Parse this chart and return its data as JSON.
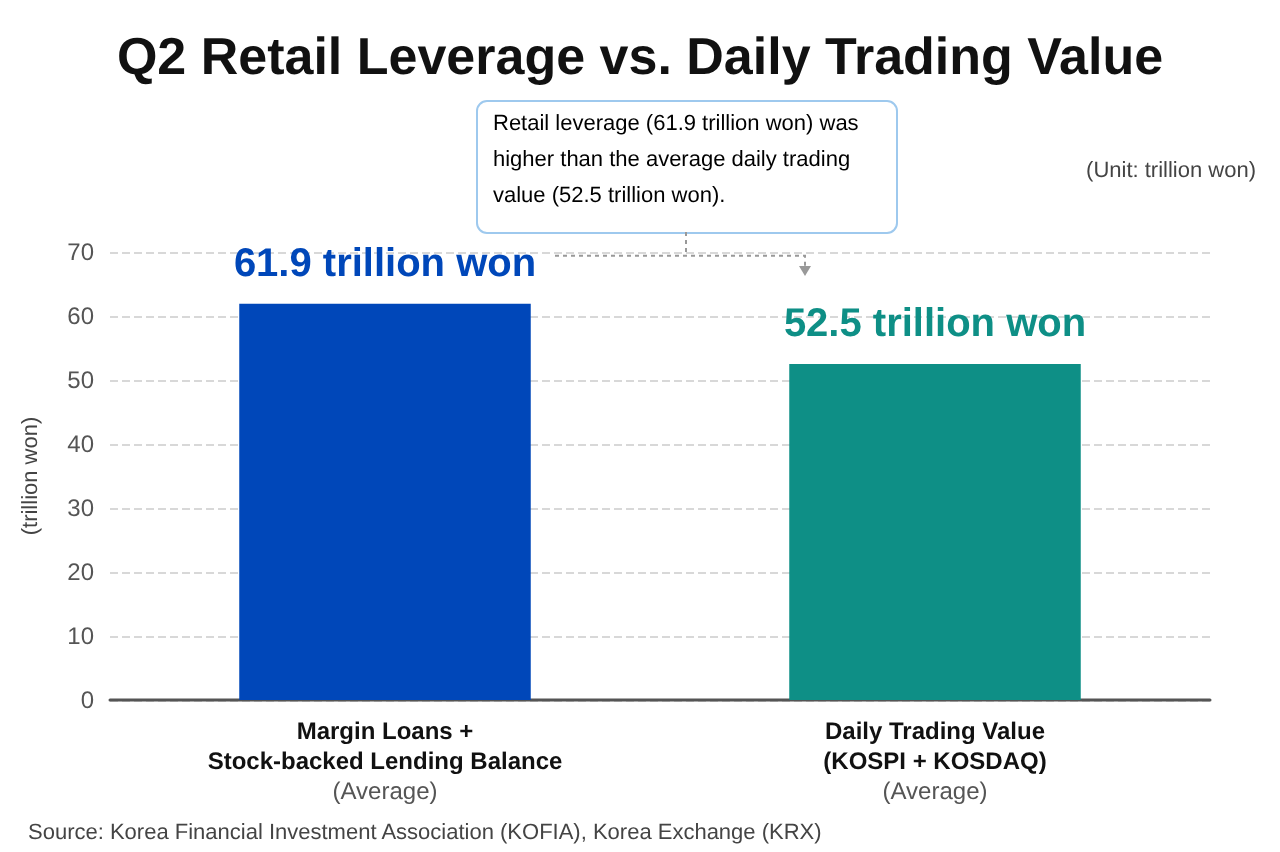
{
  "chart_data": {
    "type": "bar",
    "title": "Q2 Retail Leverage vs. Daily Trading Value",
    "categories": [
      "Margin Loans +\nStock-backed Lending Balance\n(Average)",
      "Daily Trading Value\n(KOSPI + KOSDAQ)\n(Average)"
    ],
    "values": [
      61.9,
      52.5
    ],
    "colors": [
      "#0047b9",
      "#0e8f86"
    ],
    "value_labels": [
      "61.9 trillion won",
      "52.5 trillion won"
    ],
    "ylabel": "(trillion won)",
    "ylim": [
      0,
      70
    ],
    "yticks": [
      0,
      10,
      20,
      30,
      40,
      50,
      60,
      70
    ],
    "grid": "y",
    "annotations": [
      "Retail leverage (61.9 trillion won) was higher than the average daily trading value (52.5 trillion won).",
      "(Unit: trillion won)",
      "Source: Korea Financial Investment Association (KOFIA), Korea Exchange (KRX)"
    ]
  }
}
